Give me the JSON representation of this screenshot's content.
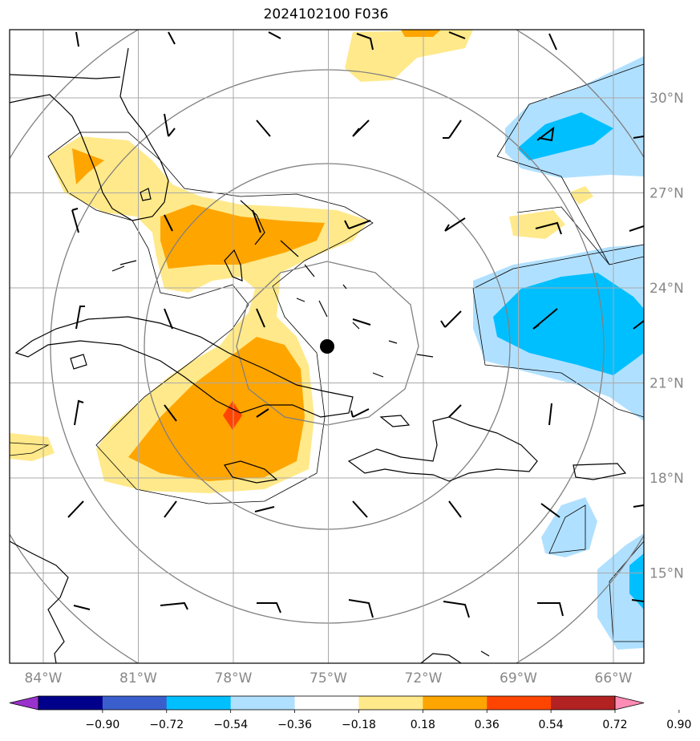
{
  "title": "2024102100 F036",
  "lon_ticks": [
    "84°W",
    "81°W",
    "78°W",
    "75°W",
    "72°W",
    "69°W",
    "66°W"
  ],
  "lat_ticks": [
    "30°N",
    "27°N",
    "24°N",
    "21°N",
    "18°N",
    "15°N"
  ],
  "colorbar": {
    "ticks": [
      "−0.90",
      "−0.72",
      "−0.54",
      "−0.36",
      "−0.18",
      "0.18",
      "0.36",
      "0.54",
      "0.72",
      "0.90"
    ],
    "colors": [
      "#9932cc",
      "#00008b",
      "#3a5fcd",
      "#00bfff",
      "#b0e0ff",
      "#ffffff",
      "#ffe98a",
      "#ffa500",
      "#ff4500",
      "#b22222",
      "#ff8cb4"
    ]
  },
  "center_marker": {
    "lon": -75.0,
    "lat": 22.1
  },
  "map_extent": {
    "lon": [
      -85,
      -65
    ],
    "lat": [
      12.3,
      32.3
    ]
  },
  "range_rings_deg": [
    2.5,
    5.5,
    8.5,
    11.5
  ]
}
